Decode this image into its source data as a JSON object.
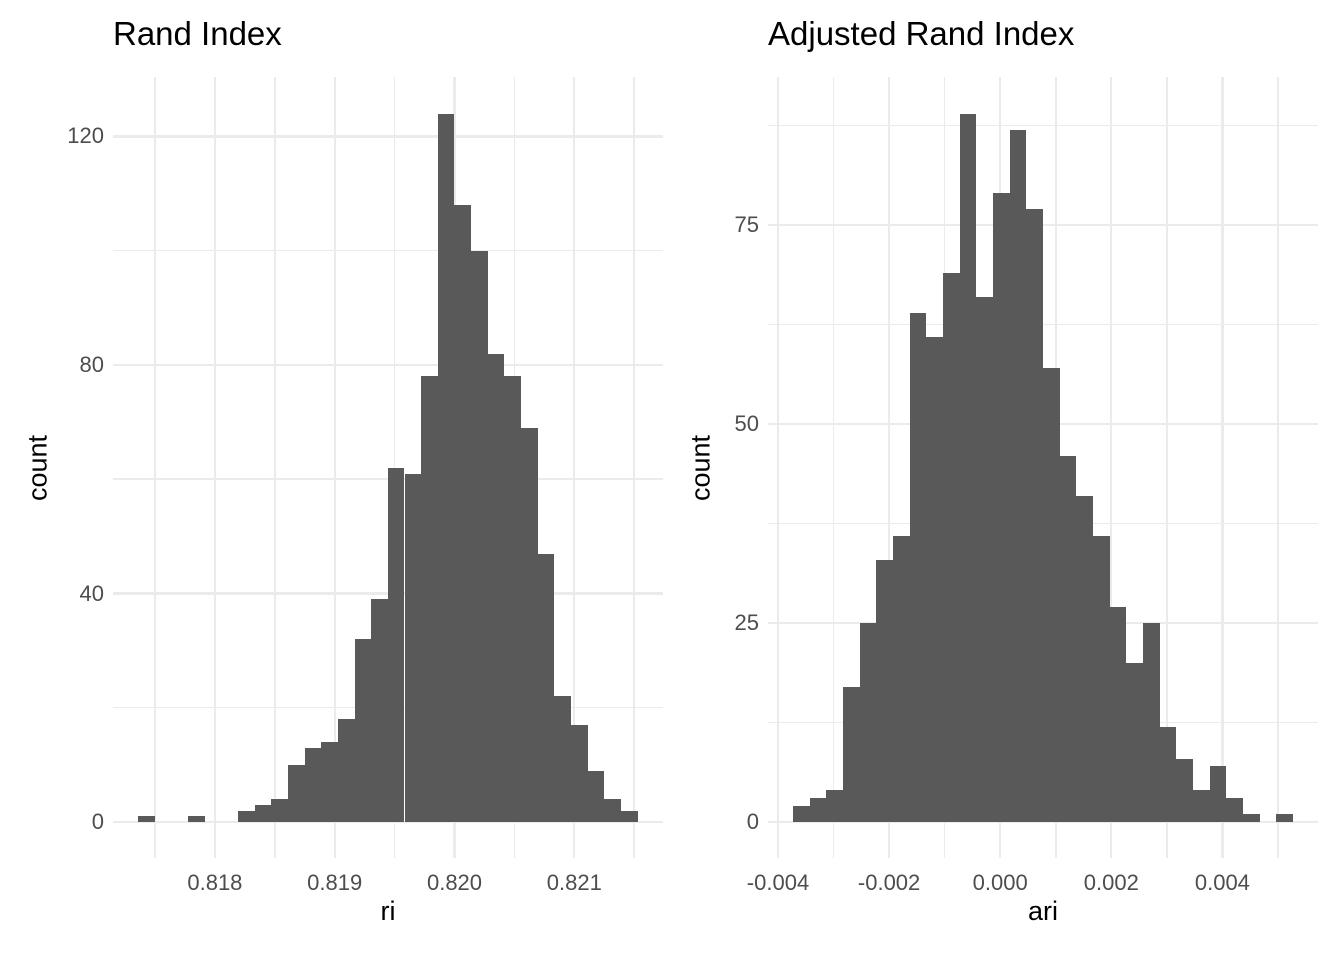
{
  "style": {
    "background": "#ffffff",
    "bar_color": "#595959",
    "grid_color": "#ebebeb",
    "tick_label_color": "#4d4d4d",
    "text_color": "#000000"
  },
  "chart_data": [
    {
      "type": "bar",
      "subtype": "histogram",
      "title": "Rand Index",
      "xlabel": "ri",
      "ylabel": "count",
      "grid": true,
      "legend_position": "none",
      "bin_width": 0.000139,
      "bin_centers": [
        0.817428,
        0.817567,
        0.817706,
        0.817845,
        0.817984,
        0.818123,
        0.818262,
        0.818401,
        0.81854,
        0.818679,
        0.818818,
        0.818957,
        0.819096,
        0.819235,
        0.819374,
        0.819513,
        0.819652,
        0.819791,
        0.81993,
        0.820069,
        0.820208,
        0.820347,
        0.820486,
        0.820625,
        0.820764,
        0.820903,
        0.821042,
        0.821181,
        0.82132,
        0.821459
      ],
      "counts": [
        1,
        0,
        0,
        1,
        0,
        0,
        2,
        3,
        4,
        10,
        13,
        14,
        18,
        32,
        39,
        62,
        61,
        78,
        124,
        108,
        100,
        82,
        78,
        69,
        47,
        22,
        17,
        9,
        4,
        2
      ],
      "xlim": [
        0.81715,
        0.82174
      ],
      "ylim": [
        -6.3,
        130.4
      ],
      "x_major_ticks": [
        {
          "value": 0.818,
          "label": "0.818"
        },
        {
          "value": 0.819,
          "label": "0.819"
        },
        {
          "value": 0.82,
          "label": "0.820"
        },
        {
          "value": 0.821,
          "label": "0.821"
        }
      ],
      "x_minor_ticks": [
        0.8175,
        0.8185,
        0.8195,
        0.8205,
        0.8215
      ],
      "y_major_ticks": [
        {
          "value": 0,
          "label": "0"
        },
        {
          "value": 40,
          "label": "40"
        },
        {
          "value": 80,
          "label": "80"
        },
        {
          "value": 120,
          "label": "120"
        }
      ],
      "y_minor_ticks": [
        20,
        60,
        100
      ]
    },
    {
      "type": "bar",
      "subtype": "histogram",
      "title": "Adjusted Rand Index",
      "xlabel": "ari",
      "ylabel": "count",
      "grid": true,
      "legend_position": "none",
      "bin_width": 0.0003,
      "bin_centers": [
        -0.00358,
        -0.00328,
        -0.00298,
        -0.00268,
        -0.00238,
        -0.00208,
        -0.00178,
        -0.00148,
        -0.00118,
        -0.00088,
        -0.00058,
        -0.00028,
        2e-05,
        0.00032,
        0.00062,
        0.00092,
        0.00122,
        0.00152,
        0.00182,
        0.00212,
        0.00242,
        0.00272,
        0.00302,
        0.00332,
        0.00362,
        0.00392,
        0.00422,
        0.00452,
        0.00482,
        0.00512
      ],
      "counts": [
        2,
        3,
        4,
        17,
        25,
        33,
        36,
        64,
        61,
        69,
        89,
        66,
        79,
        87,
        77,
        57,
        46,
        41,
        36,
        27,
        20,
        25,
        12,
        8,
        4,
        7,
        3,
        1,
        0,
        1
      ],
      "xlim": [
        -0.00418,
        0.00572
      ],
      "ylim": [
        -4.5,
        93.6
      ],
      "x_major_ticks": [
        {
          "value": -0.004,
          "label": "-0.004"
        },
        {
          "value": -0.002,
          "label": "-0.002"
        },
        {
          "value": 0.0,
          "label": "0.000"
        },
        {
          "value": 0.002,
          "label": "0.002"
        },
        {
          "value": 0.004,
          "label": "0.004"
        }
      ],
      "x_minor_ticks": [
        -0.003,
        -0.001,
        0.001,
        0.003,
        0.005
      ],
      "y_major_ticks": [
        {
          "value": 0,
          "label": "0"
        },
        {
          "value": 25,
          "label": "25"
        },
        {
          "value": 50,
          "label": "50"
        },
        {
          "value": 75,
          "label": "75"
        }
      ],
      "y_minor_ticks": [
        12.5,
        37.5,
        62.5,
        87.5
      ]
    }
  ]
}
